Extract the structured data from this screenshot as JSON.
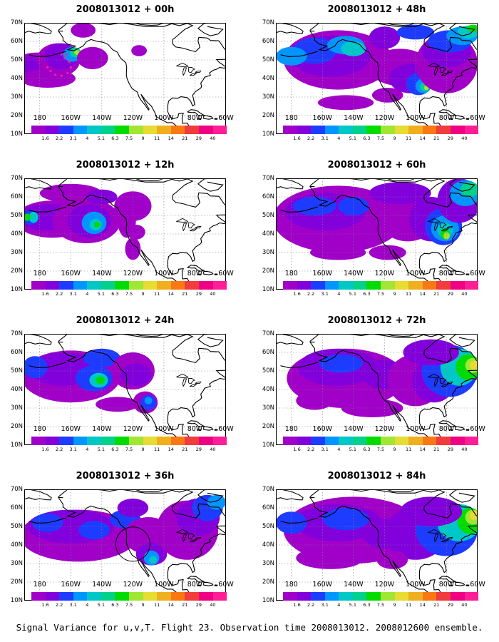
{
  "panels": [
    {
      "title": "2008013012 + 00h"
    },
    {
      "title": "2008013012 + 48h"
    },
    {
      "title": "2008013012 + 12h"
    },
    {
      "title": "2008013012 + 60h"
    },
    {
      "title": "2008013012 + 24h"
    },
    {
      "title": "2008013012 + 72h"
    },
    {
      "title": "2008013012 + 36h"
    },
    {
      "title": "2008013012 + 84h"
    }
  ],
  "lat_labels": [
    "10N",
    "20N",
    "30N",
    "40N",
    "50N",
    "60N",
    "70N"
  ],
  "lon_labels": [
    "180",
    "160W",
    "140W",
    "120W",
    "100W",
    "80W",
    "60W"
  ],
  "colorbar": {
    "labels": [
      "1.6",
      "2.2",
      "3.1",
      "4",
      "5.1",
      "6.3",
      "7.5",
      "9",
      "11",
      "14",
      "21",
      "29",
      "40"
    ],
    "colors": [
      "#a000c8",
      "#8200dc",
      "#1e3cff",
      "#0096ff",
      "#00c8c8",
      "#00d28c",
      "#00dc00",
      "#a0e632",
      "#e6dc32",
      "#f0af1e",
      "#fa7814",
      "#f03c3c",
      "#f00082",
      "#ff1e96"
    ]
  },
  "caption": "Signal Variance for u,v,T. Flight 23. Observation time 2008013012. 2008012600 ensemble.",
  "colors": {
    "background": "#ffffff",
    "coastline": "#000000",
    "grid": "#808080"
  }
}
